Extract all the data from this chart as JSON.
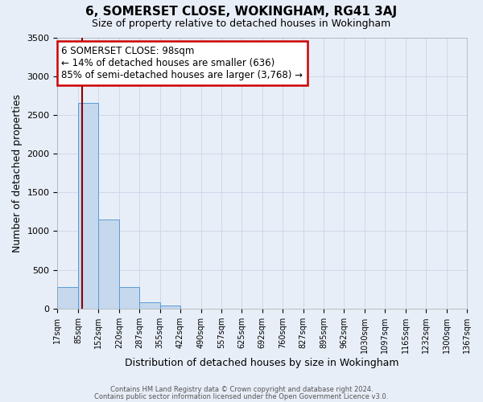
{
  "title": "6, SOMERSET CLOSE, WOKINGHAM, RG41 3AJ",
  "subtitle": "Size of property relative to detached houses in Wokingham",
  "xlabel": "Distribution of detached houses by size in Wokingham",
  "ylabel": "Number of detached properties",
  "bar_edges": [
    17,
    85,
    152,
    220,
    287,
    355,
    422,
    490,
    557,
    625,
    692,
    760,
    827,
    895,
    962,
    1030,
    1097,
    1165,
    1232,
    1300,
    1367
  ],
  "bar_heights": [
    280,
    2650,
    1150,
    280,
    80,
    40,
    0,
    0,
    0,
    0,
    0,
    0,
    0,
    0,
    0,
    0,
    0,
    0,
    0,
    0
  ],
  "bar_color": "#c5d8ed",
  "bar_edge_color": "#5b9bd5",
  "property_line_x": 98,
  "property_line_color": "#8b0000",
  "ylim": [
    0,
    3500
  ],
  "yticks": [
    0,
    500,
    1000,
    1500,
    2000,
    2500,
    3000,
    3500
  ],
  "annotation_title": "6 SOMERSET CLOSE: 98sqm",
  "annotation_line1": "← 14% of detached houses are smaller (636)",
  "annotation_line2": "85% of semi-detached houses are larger (3,768) →",
  "annotation_box_color": "#ffffff",
  "annotation_box_edge": "#cc0000",
  "grid_color": "#d0d8e8",
  "background_color": "#e8eef8",
  "footer1": "Contains HM Land Registry data © Crown copyright and database right 2024.",
  "footer2": "Contains public sector information licensed under the Open Government Licence v3.0."
}
